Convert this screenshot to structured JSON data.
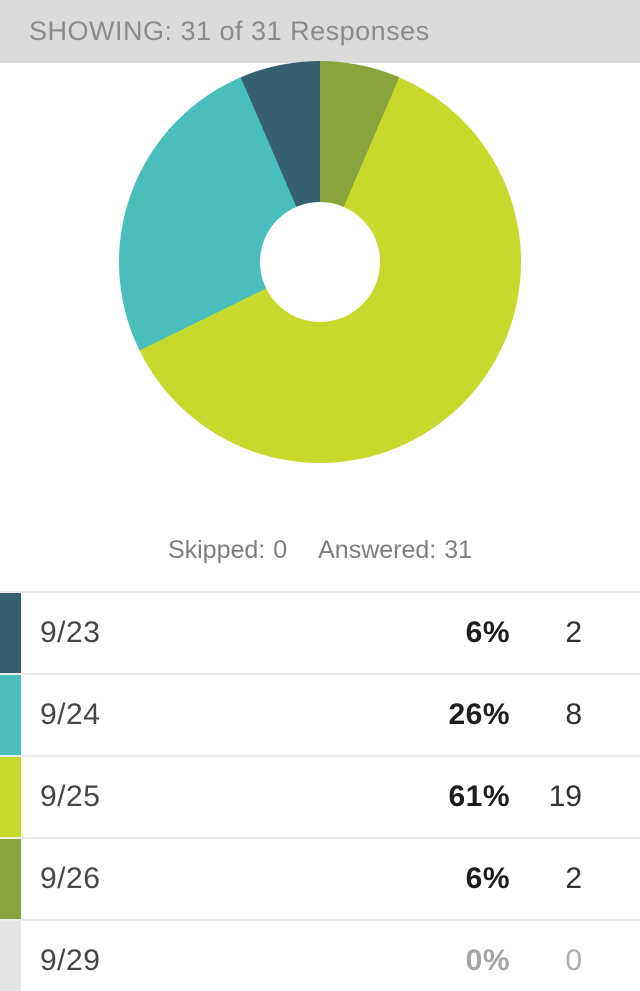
{
  "header": {
    "showing_text": "SHOWING: 31 of 31 Responses"
  },
  "summary": {
    "skipped_label": "Skipped:",
    "skipped_value": "0",
    "answered_label": "Answered:",
    "answered_value": "31"
  },
  "chart_data": {
    "type": "pie",
    "donut": true,
    "title": "",
    "start_angle_deg": 0,
    "direction": "counterclockwise-from-top",
    "categories": [
      "9/23",
      "9/24",
      "9/25",
      "9/26",
      "9/29"
    ],
    "values": [
      2,
      8,
      19,
      2,
      0
    ],
    "percent_labels": [
      "6%",
      "26%",
      "61%",
      "6%",
      "0%"
    ],
    "colors": [
      "#356070",
      "#49bebb",
      "#c8d92e",
      "#89a33d",
      "#e5e4e2"
    ],
    "total_responses": 31,
    "hole_color": "#ffffff",
    "legend_position": "table-below"
  },
  "table": {
    "rows": [
      {
        "label": "9/23",
        "percent": "6%",
        "count": "2",
        "color": "#356070",
        "muted": false
      },
      {
        "label": "9/24",
        "percent": "26%",
        "count": "8",
        "color": "#49bebb",
        "muted": false
      },
      {
        "label": "9/25",
        "percent": "61%",
        "count": "19",
        "color": "#c8d92e",
        "muted": false
      },
      {
        "label": "9/26",
        "percent": "6%",
        "count": "2",
        "color": "#89a33d",
        "muted": false
      },
      {
        "label": "9/29",
        "percent": "0%",
        "count": "0",
        "color": "#e5e4e2",
        "muted": true
      }
    ]
  }
}
